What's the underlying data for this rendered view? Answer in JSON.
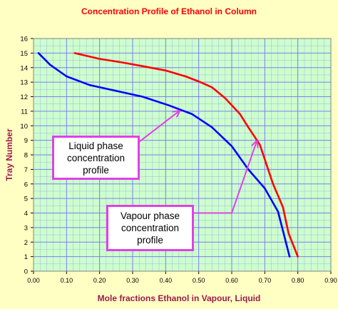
{
  "chart_data": {
    "type": "line",
    "title": "Concentration Profile of Ethanol in Column",
    "xlabel": "Mole fractions Ethanol in Vapour, Liquid",
    "ylabel": "Tray Number",
    "xlim": [
      0,
      0.9
    ],
    "ylim": [
      0,
      16
    ],
    "x_ticks": [
      "0.00",
      "0.10",
      "0.20",
      "0.30",
      "0.40",
      "0.50",
      "0.60",
      "0.70",
      "0.80",
      "0.90"
    ],
    "y_ticks": [
      "0",
      "1",
      "2",
      "3",
      "4",
      "5",
      "6",
      "7",
      "8",
      "9",
      "10",
      "11",
      "12",
      "13",
      "14",
      "15",
      "16"
    ],
    "grid": true,
    "minor_grid": true,
    "series": [
      {
        "color": "#0000ff",
        "x": [
          0.015,
          0.05,
          0.1,
          0.17,
          0.27,
          0.33,
          0.41,
          0.48,
          0.54,
          0.6,
          0.65,
          0.7,
          0.74,
          0.775
        ],
        "y": [
          15,
          14.2,
          13.4,
          12.8,
          12.3,
          12.0,
          11.4,
          10.8,
          9.9,
          8.6,
          7.0,
          5.7,
          4.1,
          1.0
        ]
      },
      {
        "color": "#ff0000",
        "x": [
          0.125,
          0.2,
          0.27,
          0.33,
          0.4,
          0.46,
          0.5,
          0.54,
          0.58,
          0.625,
          0.65,
          0.685,
          0.725,
          0.755,
          0.772,
          0.8
        ],
        "y": [
          15,
          14.6,
          14.35,
          14.1,
          13.8,
          13.4,
          13.05,
          12.65,
          11.9,
          10.8,
          9.9,
          8.7,
          6.0,
          4.4,
          2.6,
          1.0
        ]
      }
    ],
    "annotations": [
      {
        "text": [
          "Liquid phase",
          "concentration",
          "profile"
        ],
        "arrow_color": "#e040e8",
        "points": [
          [
            0.32,
            8.9
          ],
          [
            0.44,
            11.0
          ]
        ]
      },
      {
        "text": [
          "Vapour phase",
          "concentration",
          "profile"
        ],
        "arrow_color": "#e040e8",
        "points": [
          [
            0.445,
            4.0
          ],
          [
            0.6,
            4.0
          ],
          [
            0.675,
            8.9
          ]
        ]
      }
    ]
  },
  "colors": {
    "background": "#ffffc4",
    "plot_area": "#cdffcd",
    "grid": "#7d7df0",
    "title_text": "#ff0000",
    "axis_label_text": "#9b1b4a",
    "tick_text": "#000000",
    "callout_border": "#e040e8"
  }
}
